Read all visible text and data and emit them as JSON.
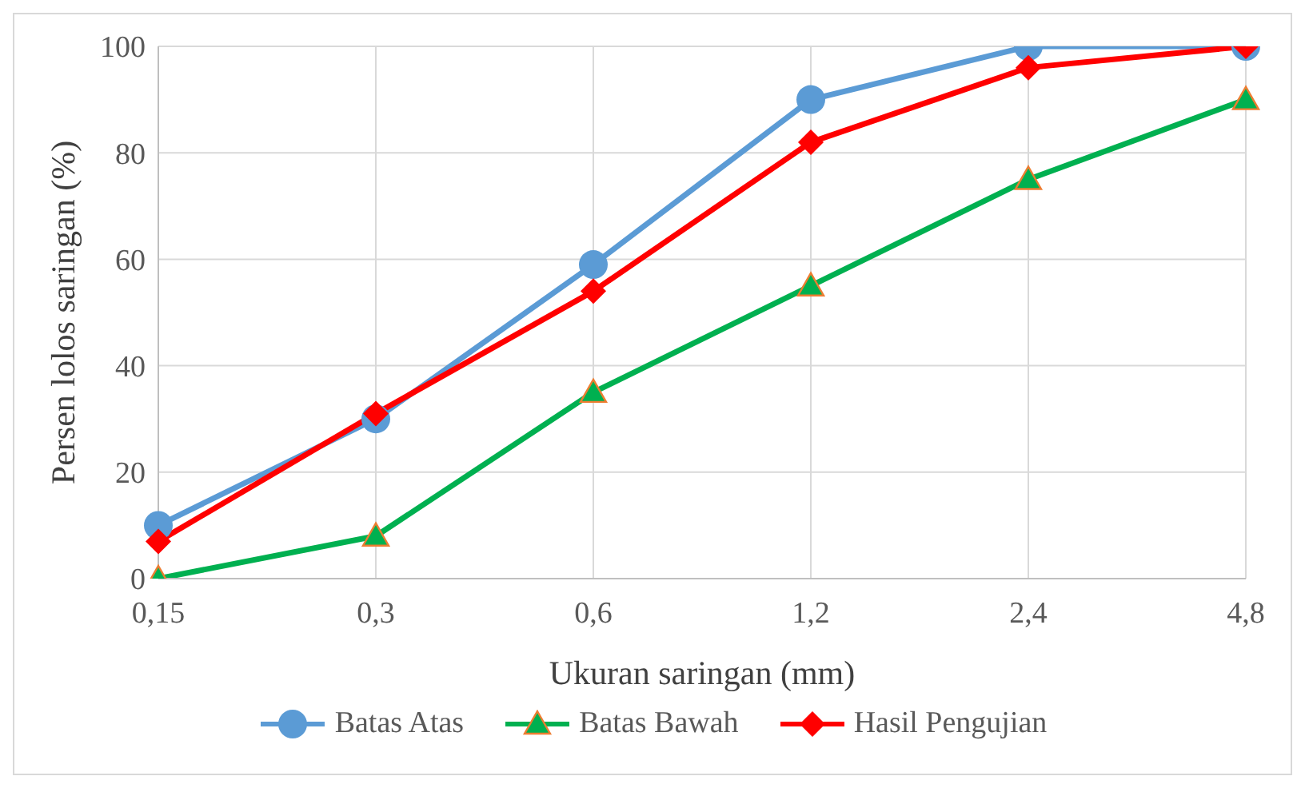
{
  "chart_data": {
    "type": "line",
    "xlabel": "Ukuran saringan (mm)",
    "ylabel": "Persen lolos saringan (%)",
    "categories": [
      "0,15",
      "0,3",
      "0,6",
      "1,2",
      "2,4",
      "4,8"
    ],
    "series": [
      {
        "name": "Batas Atas",
        "color": "#5b9bd5",
        "marker": "circle",
        "values": [
          10,
          30,
          59,
          90,
          100,
          100
        ]
      },
      {
        "name": "Batas Bawah",
        "color": "#00b050",
        "marker": "triangle",
        "values": [
          0,
          8,
          35,
          55,
          75,
          90
        ]
      },
      {
        "name": "Hasil Pengujian",
        "color": "#ff0000",
        "marker": "diamond",
        "values": [
          7,
          31,
          54,
          82,
          96,
          100
        ]
      }
    ],
    "ylim": [
      0,
      100
    ],
    "yticks": [
      0,
      20,
      40,
      60,
      80,
      100
    ],
    "grid": true,
    "legend": "bottom"
  }
}
